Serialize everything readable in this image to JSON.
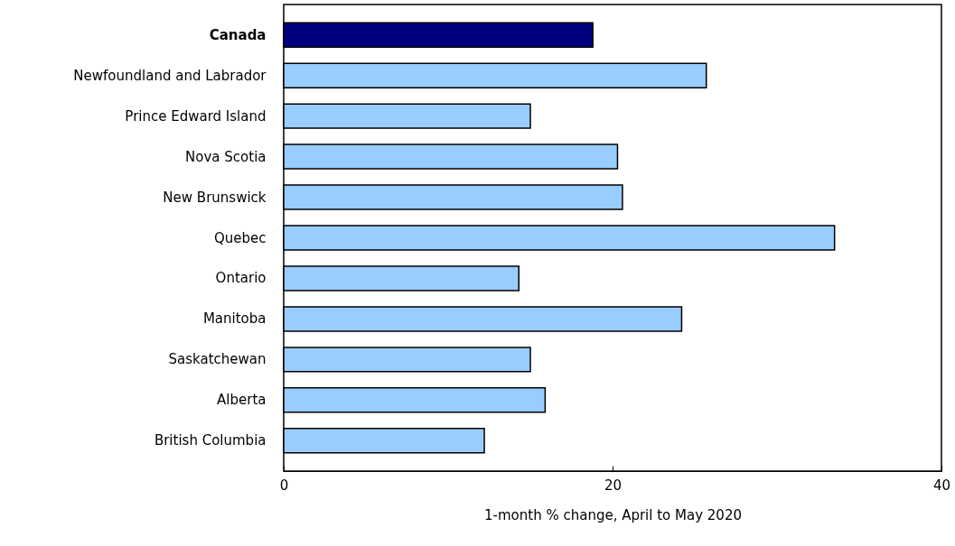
{
  "chart_data": {
    "type": "bar",
    "orientation": "horizontal",
    "xlabel": "1-month % change, April to May 2020",
    "categories": [
      "Canada",
      "Newfoundland and Labrador",
      "Prince Edward Island",
      "Nova Scotia",
      "New Brunswick",
      "Quebec",
      "Ontario",
      "Manitoba",
      "Saskatchewan",
      "Alberta",
      "British Columbia"
    ],
    "values": [
      18.8,
      25.7,
      15.0,
      20.3,
      20.6,
      33.5,
      14.3,
      24.2,
      15.0,
      15.9,
      12.2
    ],
    "colors": [
      "#000080",
      "#99ccff",
      "#99ccff",
      "#99ccff",
      "#99ccff",
      "#99ccff",
      "#99ccff",
      "#99ccff",
      "#99ccff",
      "#99ccff",
      "#99ccff"
    ],
    "xlim": [
      0,
      40
    ],
    "xticks": [
      0,
      20,
      40
    ],
    "grid": false
  }
}
